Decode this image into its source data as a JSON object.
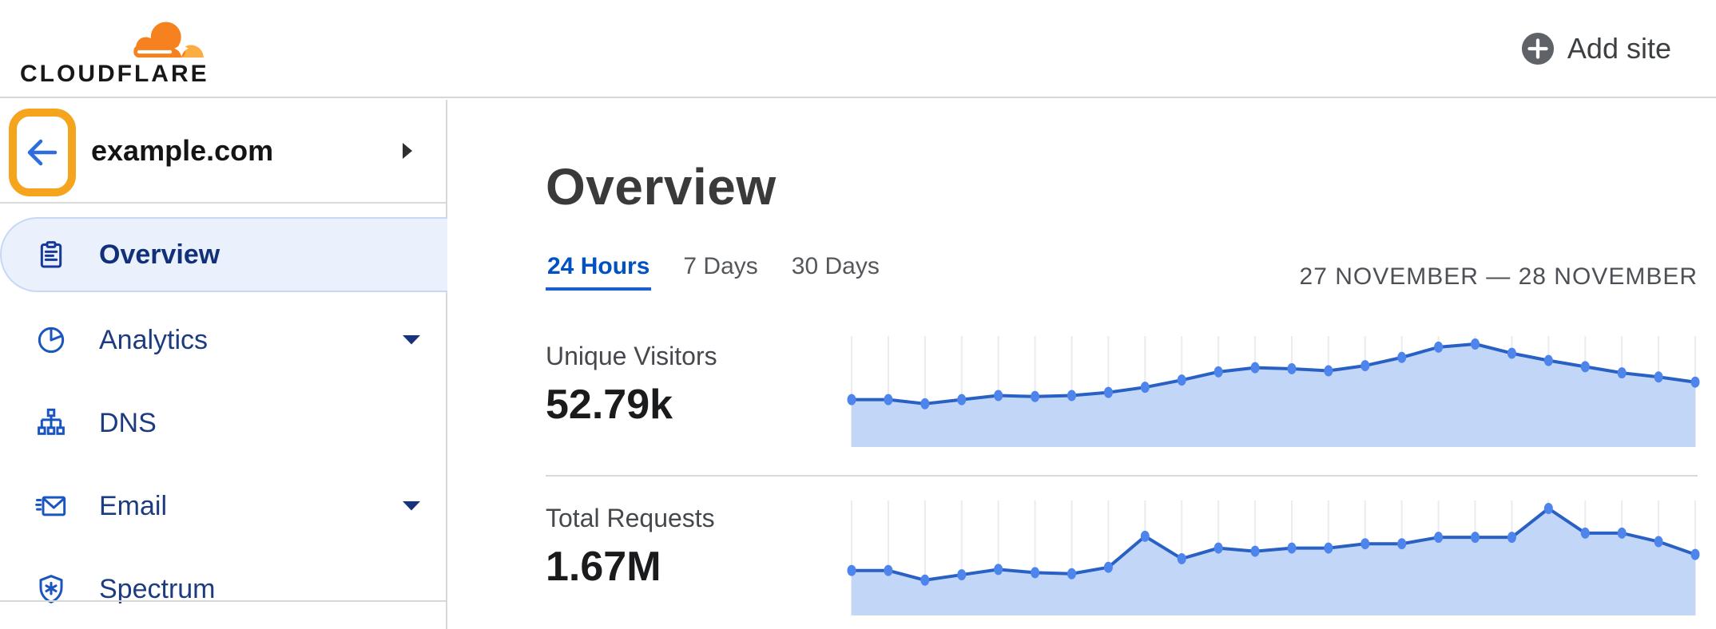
{
  "header": {
    "logo_text": "CLOUDFLARE",
    "add_site_label": "Add site"
  },
  "sidebar": {
    "site_name": "example.com",
    "items": [
      {
        "label": "Overview",
        "selected": true,
        "has_submenu": false
      },
      {
        "label": "Analytics",
        "selected": false,
        "has_submenu": true
      },
      {
        "label": "DNS",
        "selected": false,
        "has_submenu": false
      },
      {
        "label": "Email",
        "selected": false,
        "has_submenu": true
      },
      {
        "label": "Spectrum",
        "selected": false,
        "has_submenu": false
      }
    ]
  },
  "main": {
    "title": "Overview",
    "tabs": [
      {
        "label": "24 Hours",
        "active": true
      },
      {
        "label": "7 Days",
        "active": false
      },
      {
        "label": "30 Days",
        "active": false
      }
    ],
    "date_range": "27 NOVEMBER — 28 NOVEMBER",
    "metrics": [
      {
        "label": "Unique Visitors",
        "value": "52.79k"
      },
      {
        "label": "Total Requests",
        "value": "1.67M"
      }
    ]
  },
  "colors": {
    "brand_orange": "#f6821f",
    "brand_orange_light": "#fbad41",
    "highlight_orange": "#f5a41e",
    "link_blue": "#0051c3",
    "chart_dot": "#4d85ec",
    "chart_line": "#2960c4",
    "chart_fill": "#c2d6f7",
    "chart_grid": "#ebebf1"
  },
  "chart_data": [
    {
      "type": "area",
      "title": "Unique Visitors",
      "total": "52.79k",
      "time_range": "24 Hours",
      "x": "hourly points, 27 November — 28 November",
      "points": 24,
      "values_pct_of_max": [
        46,
        46,
        42,
        46,
        50,
        49,
        50,
        53,
        58,
        65,
        73,
        77,
        76,
        74,
        79,
        87,
        97,
        100,
        91,
        84,
        78,
        72,
        68,
        63
      ],
      "y_axis": "hidden",
      "grid": "vertical line per point",
      "legend": "none"
    },
    {
      "type": "area",
      "title": "Total Requests",
      "total": "1.67M",
      "time_range": "24 Hours",
      "x": "hourly points, 27 November — 28 November",
      "points": 24,
      "values_pct_of_max": [
        42,
        42,
        33,
        38,
        43,
        40,
        39,
        45,
        74,
        53,
        63,
        60,
        63,
        63,
        67,
        67,
        73,
        73,
        73,
        100,
        77,
        77,
        69,
        57
      ],
      "y_axis": "hidden",
      "grid": "vertical line per point",
      "legend": "none"
    }
  ]
}
